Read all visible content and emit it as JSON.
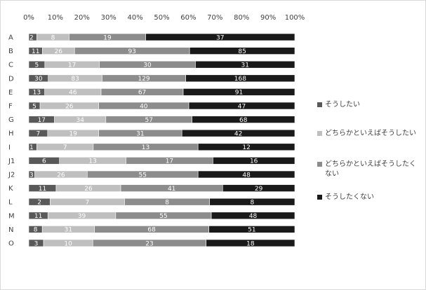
{
  "chart_data": {
    "type": "bar",
    "orientation": "horizontal",
    "stacked": "100%",
    "title": "",
    "xlabel": "",
    "ylabel": "",
    "xlim": [
      0,
      100
    ],
    "x_ticks": [
      "0%",
      "10%",
      "20%",
      "30%",
      "40%",
      "50%",
      "60%",
      "70%",
      "80%",
      "90%",
      "100%"
    ],
    "x_axis_position": "top",
    "grid": false,
    "legend_position": "right",
    "categories": [
      "A",
      "B",
      "C",
      "D",
      "E",
      "F",
      "G",
      "H",
      "I",
      "J1",
      "J2",
      "K",
      "L",
      "M",
      "N",
      "O"
    ],
    "series": [
      {
        "name": "そうしたい",
        "color": "#595959",
        "values": [
          2,
          11,
          5,
          30,
          13,
          5,
          17,
          7,
          1,
          6,
          3,
          11,
          2,
          11,
          8,
          3
        ]
      },
      {
        "name": "どちらかといえばそうしたい",
        "color": "#bfbfbf",
        "values": [
          8,
          26,
          17,
          83,
          46,
          26,
          34,
          19,
          7,
          13,
          26,
          26,
          7,
          39,
          31,
          10
        ]
      },
      {
        "name": "どちらかといえばそうしたくない",
        "color": "#8c8c8c",
        "values": [
          19,
          93,
          30,
          129,
          67,
          40,
          57,
          31,
          13,
          17,
          55,
          41,
          8,
          55,
          68,
          23
        ]
      },
      {
        "name": "そうしたくない",
        "color": "#1a1a1a",
        "values": [
          37,
          85,
          31,
          168,
          91,
          47,
          68,
          42,
          12,
          16,
          48,
          29,
          8,
          48,
          51,
          18
        ]
      }
    ],
    "legend_wrapped_label": [
      "どちらかといえばそうしたく",
      "ない"
    ]
  }
}
